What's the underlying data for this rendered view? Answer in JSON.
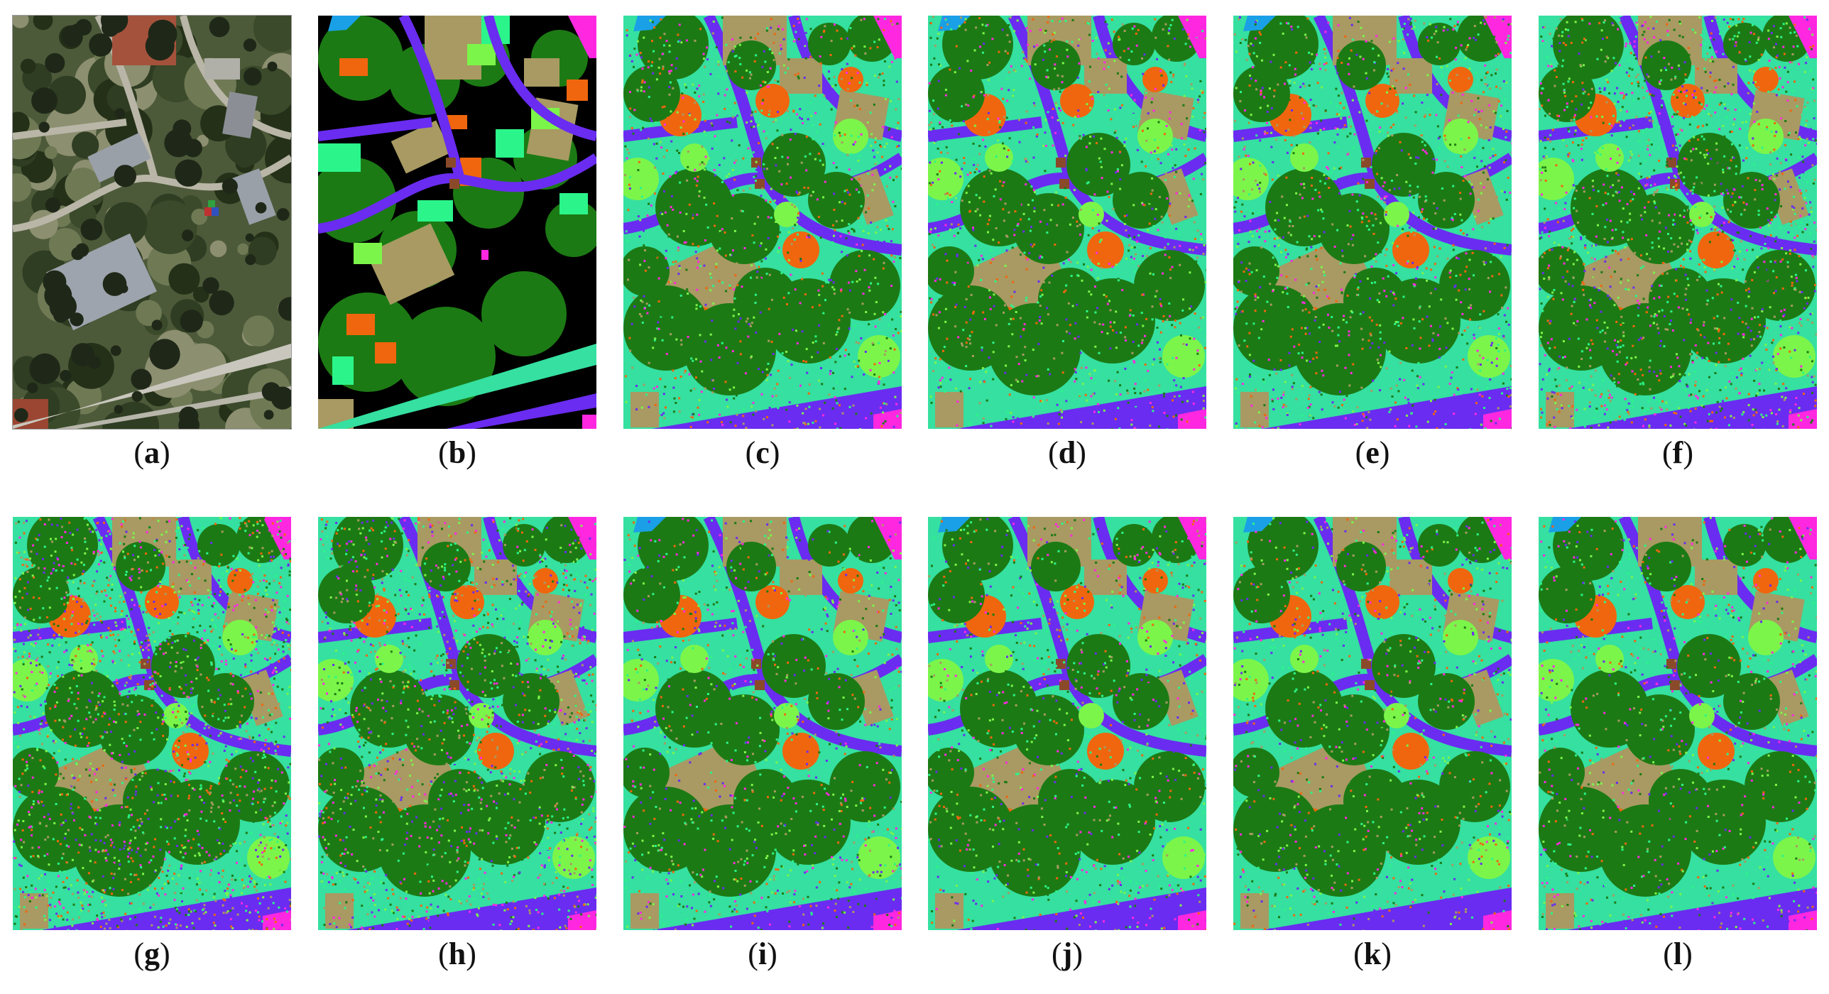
{
  "figure": {
    "panels": [
      {
        "id": "a",
        "caption_open": "(",
        "letter": "a",
        "caption_close": ")",
        "kind": "rgb"
      },
      {
        "id": "b",
        "caption_open": "(",
        "letter": "b",
        "caption_close": ")",
        "kind": "ground-truth"
      },
      {
        "id": "c",
        "caption_open": "(",
        "letter": "c",
        "caption_close": ")",
        "kind": "classification"
      },
      {
        "id": "d",
        "caption_open": "(",
        "letter": "d",
        "caption_close": ")",
        "kind": "classification"
      },
      {
        "id": "e",
        "caption_open": "(",
        "letter": "e",
        "caption_close": ")",
        "kind": "classification"
      },
      {
        "id": "f",
        "caption_open": "(",
        "letter": "f",
        "caption_close": ")",
        "kind": "classification"
      },
      {
        "id": "g",
        "caption_open": "(",
        "letter": "g",
        "caption_close": ")",
        "kind": "classification"
      },
      {
        "id": "h",
        "caption_open": "(",
        "letter": "h",
        "caption_close": ")",
        "kind": "classification"
      },
      {
        "id": "i",
        "caption_open": "(",
        "letter": "i",
        "caption_close": ")",
        "kind": "classification"
      },
      {
        "id": "j",
        "caption_open": "(",
        "letter": "j",
        "caption_close": ")",
        "kind": "classification"
      },
      {
        "id": "k",
        "caption_open": "(",
        "letter": "k",
        "caption_close": ")",
        "kind": "classification"
      },
      {
        "id": "l",
        "caption_open": "(",
        "letter": "l",
        "caption_close": ")",
        "kind": "classification"
      }
    ],
    "class_colors": {
      "background": "#000000",
      "healthy-grass": "#2bf58a",
      "stressed-grass": "#7cf54a",
      "trees": "#1c7a14",
      "soil": "#f0660e",
      "water": "#1aa0e6",
      "residential": "#a89a62",
      "road": "#6a2cf0",
      "highway": "#ff28e0",
      "railway": "#8a4a2a",
      "parking-lot": "#35e0a0"
    }
  }
}
